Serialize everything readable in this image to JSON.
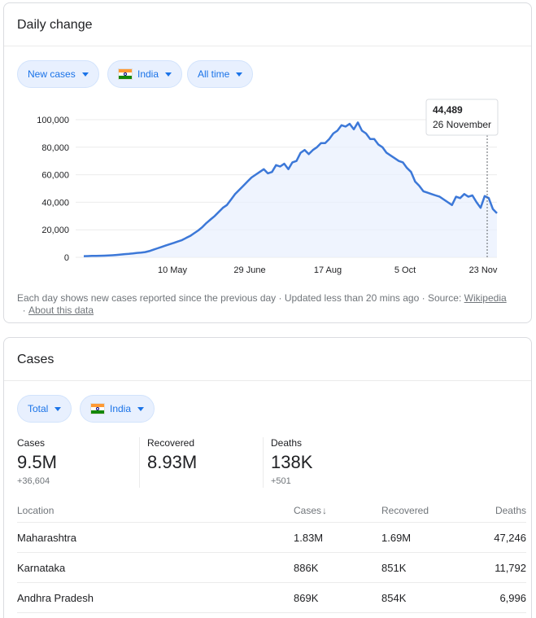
{
  "daily": {
    "title": "Daily change",
    "chips": {
      "metric": "New cases",
      "country": "India",
      "range": "All time"
    },
    "tooltip": {
      "value": "44,489",
      "date": "26 November"
    },
    "footnote": {
      "text": "Each day shows new cases reported since the previous day · Updated less than 20 mins ago · Source: ",
      "source_link": "Wikipedia",
      "about_link": "About this data"
    }
  },
  "chart_data": {
    "type": "area",
    "x_tick_labels": [
      "10 May",
      "29 June",
      "17 Aug",
      "5 Oct",
      "23 Nov"
    ],
    "y_tick_labels": [
      "0",
      "20,000",
      "40,000",
      "60,000",
      "80,000",
      "100,000"
    ],
    "ylim": [
      0,
      100000
    ],
    "grid": true,
    "line_color": "#3c78d8",
    "fill_color": "#e8f0fe",
    "series": [
      {
        "values": [
          800,
          900,
          1000,
          1000,
          1100,
          1200,
          1300,
          1500,
          1700,
          2000,
          2300,
          2500,
          2800,
          3200,
          3400,
          3800,
          4500,
          5500,
          6500,
          7500,
          8500,
          9500,
          10500,
          11500,
          12500,
          14000,
          15500,
          17500,
          19500,
          22000,
          25000,
          27500,
          30000,
          33000,
          36000,
          38000,
          42000,
          46000,
          49000,
          52000,
          55000,
          58000,
          60000,
          62000,
          64000,
          61000,
          62000,
          67000,
          66000,
          68000,
          64000,
          69000,
          70000,
          76000,
          78000,
          75000,
          78000,
          80000,
          83000,
          83000,
          86000,
          90000,
          92000,
          96000,
          95000,
          97000,
          93000,
          98000,
          92000,
          90000,
          86000,
          86000,
          82000,
          80000,
          76000,
          74000,
          72000,
          70000,
          69000,
          65000,
          62000,
          55000,
          52000,
          48000,
          47000,
          46000,
          45000,
          44000,
          42000,
          40000,
          38000,
          44000,
          43000,
          46000,
          44000,
          45000,
          40000,
          36000,
          44500,
          43000,
          35000,
          32000
        ]
      }
    ]
  },
  "cases": {
    "title": "Cases",
    "chips": {
      "type": "Total",
      "country": "India"
    },
    "stats": [
      {
        "label": "Cases",
        "value": "9.5M",
        "delta": "+36,604"
      },
      {
        "label": "Recovered",
        "value": "8.93M",
        "delta": ""
      },
      {
        "label": "Deaths",
        "value": "138K",
        "delta": "+501"
      }
    ],
    "table": {
      "headers": [
        "Location",
        "Cases",
        "Recovered",
        "Deaths"
      ],
      "rows": [
        [
          "Maharashtra",
          "1.83M",
          "1.69M",
          "47,246"
        ],
        [
          "Karnataka",
          "886K",
          "851K",
          "11,792"
        ],
        [
          "Andhra Pradesh",
          "869K",
          "854K",
          "6,996"
        ]
      ]
    }
  }
}
